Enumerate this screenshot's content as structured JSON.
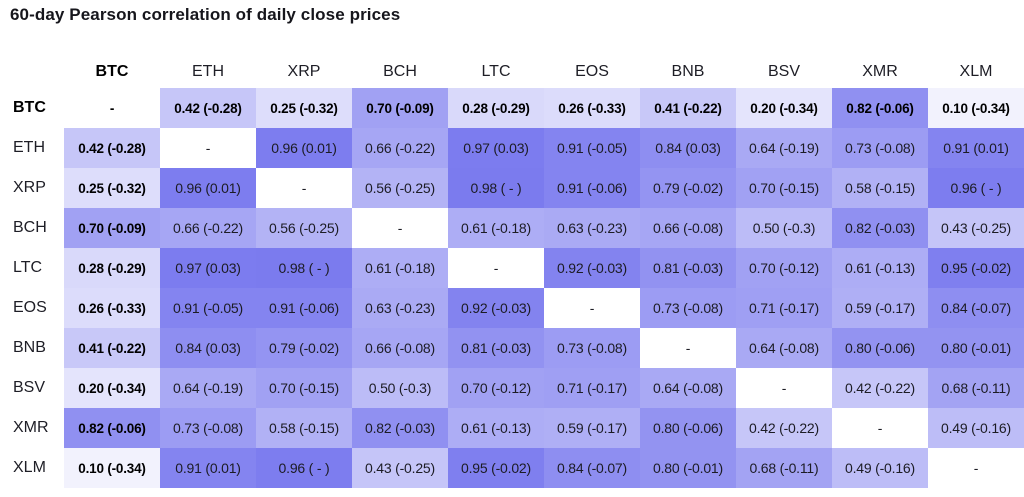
{
  "title": "60-day Pearson correlation of daily close prices",
  "colors": {
    "heat_max": "#7878ee",
    "heat_min": "#ffffff",
    "diagonal_bg": "#ffffff",
    "cell_text": "#1c1c24",
    "title_text": "#16161c"
  },
  "chart_data": {
    "type": "heatmap",
    "title": "60-day Pearson correlation of daily close prices",
    "legend_position": "none",
    "row_labels": [
      "BTC",
      "ETH",
      "XRP",
      "BCH",
      "LTC",
      "EOS",
      "BNB",
      "BSV",
      "XMR",
      "XLM"
    ],
    "col_labels": [
      "BTC",
      "ETH",
      "XRP",
      "BCH",
      "LTC",
      "EOS",
      "BNB",
      "BSV",
      "XMR",
      "XLM"
    ],
    "diagonal_label": "-",
    "color_scale": {
      "domain": [
        0,
        1
      ],
      "min_color": "#ffffff",
      "max_color": "#7878ee"
    },
    "values": [
      [
        null,
        0.42,
        0.25,
        0.7,
        0.28,
        0.26,
        0.41,
        0.2,
        0.82,
        0.1
      ],
      [
        0.42,
        null,
        0.96,
        0.66,
        0.97,
        0.91,
        0.84,
        0.64,
        0.73,
        0.91
      ],
      [
        0.25,
        0.96,
        null,
        0.56,
        0.98,
        0.91,
        0.79,
        0.7,
        0.58,
        0.96
      ],
      [
        0.7,
        0.66,
        0.56,
        null,
        0.61,
        0.63,
        0.66,
        0.5,
        0.82,
        0.43
      ],
      [
        0.28,
        0.97,
        0.98,
        0.61,
        null,
        0.92,
        0.81,
        0.7,
        0.61,
        0.95
      ],
      [
        0.26,
        0.91,
        0.91,
        0.63,
        0.92,
        null,
        0.73,
        0.71,
        0.59,
        0.84
      ],
      [
        0.41,
        0.84,
        0.79,
        0.66,
        0.81,
        0.73,
        null,
        0.64,
        0.8,
        0.8
      ],
      [
        0.2,
        0.64,
        0.7,
        0.5,
        0.7,
        0.71,
        0.64,
        null,
        0.42,
        0.68
      ],
      [
        0.82,
        0.73,
        0.58,
        0.82,
        0.61,
        0.59,
        0.8,
        0.42,
        null,
        0.49
      ],
      [
        0.1,
        0.91,
        0.96,
        0.43,
        0.95,
        0.84,
        0.8,
        0.68,
        0.49,
        null
      ]
    ],
    "cell_labels": [
      [
        "-",
        "0.42 (-0.28)",
        "0.25 (-0.32)",
        "0.70 (-0.09)",
        "0.28 (-0.29)",
        "0.26 (-0.33)",
        "0.41 (-0.22)",
        "0.20 (-0.34)",
        "0.82 (-0.06)",
        "0.10 (-0.34)"
      ],
      [
        "0.42 (-0.28)",
        "-",
        "0.96 (0.01)",
        "0.66 (-0.22)",
        "0.97 (0.03)",
        "0.91 (-0.05)",
        "0.84 (0.03)",
        "0.64 (-0.19)",
        "0.73 (-0.08)",
        "0.91 (0.01)"
      ],
      [
        "0.25 (-0.32)",
        "0.96 (0.01)",
        "-",
        "0.56 (-0.25)",
        "0.98 ( - )",
        "0.91 (-0.06)",
        "0.79 (-0.02)",
        "0.70 (-0.15)",
        "0.58 (-0.15)",
        "0.96 ( - )"
      ],
      [
        "0.70 (-0.09)",
        "0.66 (-0.22)",
        "0.56 (-0.25)",
        "-",
        "0.61 (-0.18)",
        "0.63 (-0.23)",
        "0.66 (-0.08)",
        "0.50 (-0.3)",
        "0.82 (-0.03)",
        "0.43 (-0.25)"
      ],
      [
        "0.28 (-0.29)",
        "0.97 (0.03)",
        "0.98 ( - )",
        "0.61 (-0.18)",
        "-",
        "0.92 (-0.03)",
        "0.81 (-0.03)",
        "0.70 (-0.12)",
        "0.61 (-0.13)",
        "0.95 (-0.02)"
      ],
      [
        "0.26 (-0.33)",
        "0.91 (-0.05)",
        "0.91 (-0.06)",
        "0.63 (-0.23)",
        "0.92 (-0.03)",
        "-",
        "0.73 (-0.08)",
        "0.71 (-0.17)",
        "0.59 (-0.17)",
        "0.84 (-0.07)"
      ],
      [
        "0.41 (-0.22)",
        "0.84 (0.03)",
        "0.79 (-0.02)",
        "0.66 (-0.08)",
        "0.81 (-0.03)",
        "0.73 (-0.08)",
        "-",
        "0.64 (-0.08)",
        "0.80 (-0.06)",
        "0.80 (-0.01)"
      ],
      [
        "0.20 (-0.34)",
        "0.64 (-0.19)",
        "0.70 (-0.15)",
        "0.50 (-0.3)",
        "0.70 (-0.12)",
        "0.71 (-0.17)",
        "0.64 (-0.08)",
        "-",
        "0.42 (-0.22)",
        "0.68 (-0.11)"
      ],
      [
        "0.82 (-0.06)",
        "0.73 (-0.08)",
        "0.58 (-0.15)",
        "0.82 (-0.03)",
        "0.61 (-0.13)",
        "0.59 (-0.17)",
        "0.80 (-0.06)",
        "0.42 (-0.22)",
        "-",
        "0.49 (-0.16)"
      ],
      [
        "0.10 (-0.34)",
        "0.91 (0.01)",
        "0.96 ( - )",
        "0.43 (-0.25)",
        "0.95 (-0.02)",
        "0.84 (-0.07)",
        "0.80 (-0.01)",
        "0.68 (-0.11)",
        "0.49 (-0.16)",
        "-"
      ]
    ]
  }
}
